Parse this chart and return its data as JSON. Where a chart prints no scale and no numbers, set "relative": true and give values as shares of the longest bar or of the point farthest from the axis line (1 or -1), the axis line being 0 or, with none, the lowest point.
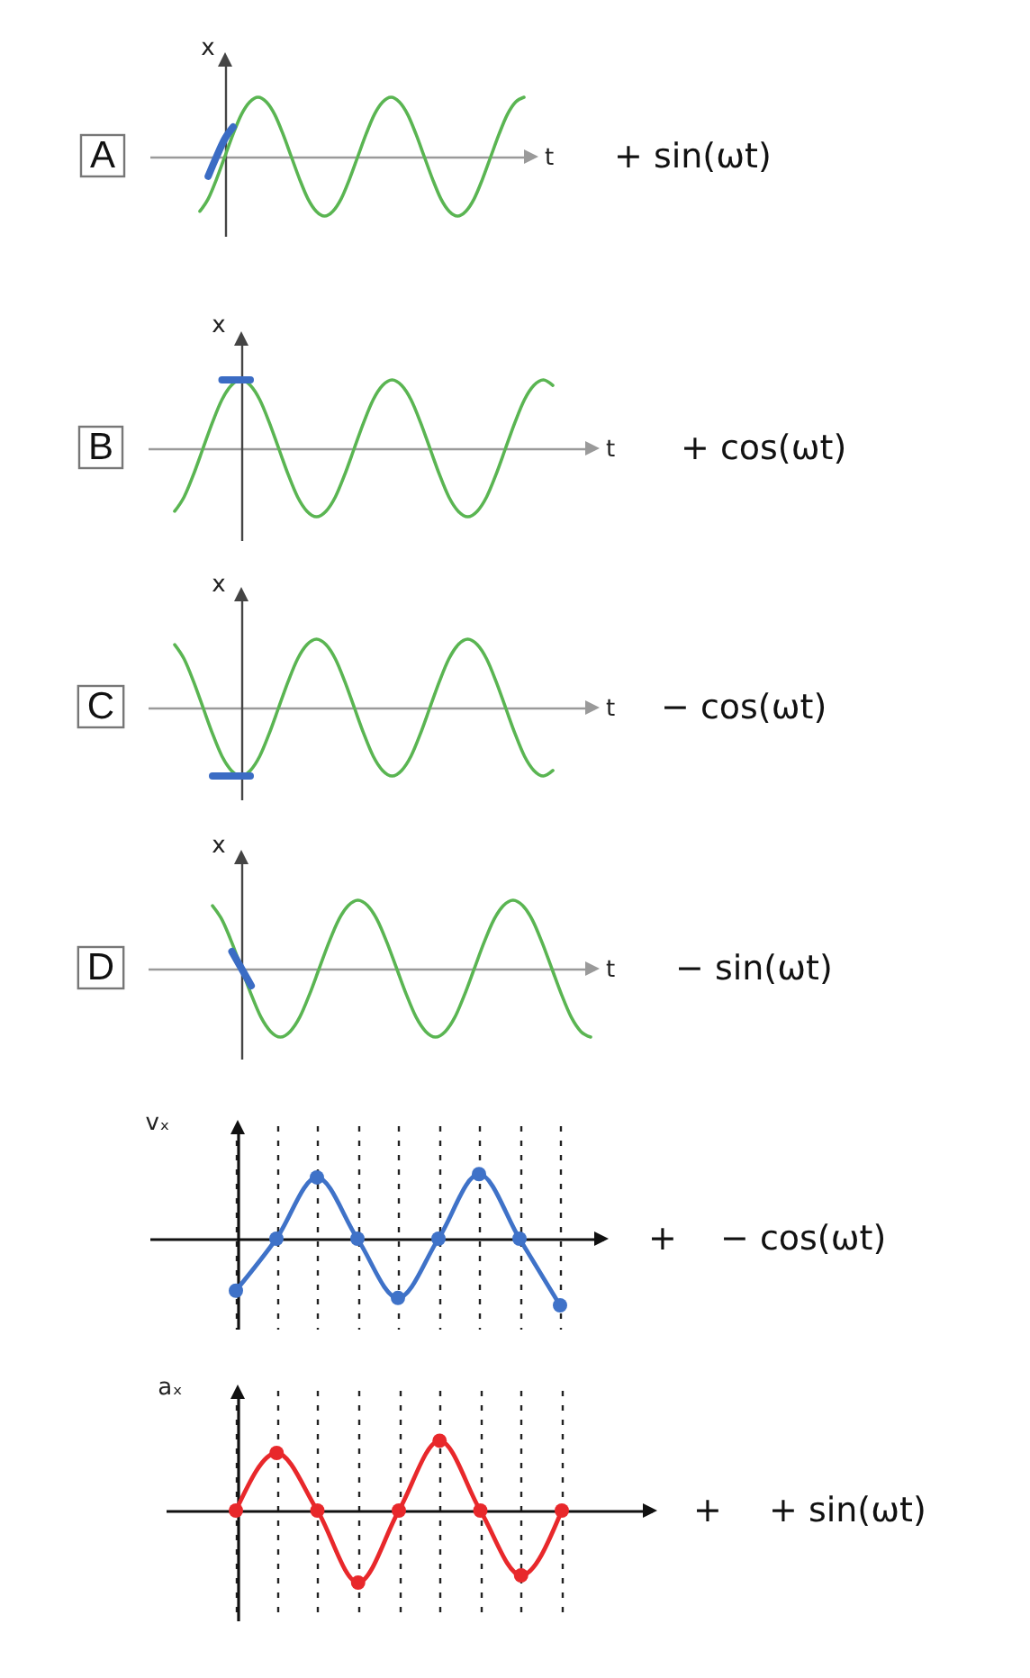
{
  "chart_data": [
    {
      "type": "line",
      "title": "A",
      "xlabel": "t",
      "ylabel": "x",
      "annotations": [
        "+ sin(ωt)"
      ],
      "relative": true,
      "categories": [
        null,
        null,
        null,
        null,
        null,
        null,
        null,
        null,
        null,
        null,
        null,
        null,
        null,
        null,
        null,
        null,
        null,
        null,
        null,
        null,
        null,
        null,
        null,
        null,
        null,
        null,
        null,
        null,
        null,
        null,
        null,
        null,
        null,
        null,
        null,
        null,
        null,
        null,
        null,
        null
      ],
      "series": [
        {
          "color": "#5ab552",
          "values": [
            -0.92,
            -0.71,
            -0.38,
            0,
            0.38,
            0.71,
            0.92,
            1,
            0.92,
            0.71,
            0.38,
            0,
            -0.38,
            -0.71,
            -0.92,
            -1,
            -0.92,
            -0.71,
            -0.38,
            0,
            0.38,
            0.71,
            0.92,
            1,
            0.92,
            0.71,
            0.38,
            0,
            -0.38,
            -0.71,
            -0.92,
            -1,
            -0.92,
            -0.71,
            -0.38,
            0,
            0.38,
            0.71,
            0.92,
            1
          ]
        },
        {
          "color": "#3b6cc4",
          "values": [
            null,
            -0.33,
            0,
            0.3,
            0.5,
            null,
            null,
            null,
            null,
            null,
            null,
            null,
            null,
            null,
            null,
            null,
            null,
            null,
            null,
            null,
            null,
            null,
            null,
            null,
            null,
            null,
            null,
            null,
            null,
            null,
            null,
            null,
            null,
            null,
            null,
            null,
            null,
            null,
            null,
            null
          ]
        }
      ]
    },
    {
      "type": "line",
      "title": "B",
      "xlabel": "t",
      "ylabel": "x",
      "annotations": [
        "+ cos(ωt)"
      ],
      "relative": true,
      "categories": [
        null,
        null,
        null,
        null,
        null,
        null,
        null,
        null,
        null,
        null,
        null,
        null,
        null,
        null,
        null,
        null,
        null,
        null,
        null,
        null,
        null,
        null,
        null,
        null,
        null,
        null,
        null,
        null,
        null,
        null,
        null,
        null,
        null,
        null,
        null,
        null,
        null,
        null,
        null,
        null,
        null
      ],
      "series": [
        {
          "color": "#5ab552",
          "values": [
            -0.92,
            -0.71,
            -0.38,
            0,
            0.38,
            0.71,
            0.92,
            1,
            0.92,
            0.71,
            0.38,
            0,
            -0.38,
            -0.71,
            -0.92,
            -1,
            -0.92,
            -0.71,
            -0.38,
            0,
            0.38,
            0.71,
            0.92,
            1,
            0.92,
            0.71,
            0.38,
            0,
            -0.38,
            -0.71,
            -0.92,
            -1,
            -0.92,
            -0.71,
            -0.38,
            0,
            0.38,
            0.71,
            0.92,
            1,
            0.92
          ]
        },
        {
          "color": "#3b6cc4",
          "values": [
            null,
            null,
            null,
            null,
            null,
            1,
            1,
            1,
            1,
            null,
            null,
            null,
            null,
            null,
            null,
            null,
            null,
            null,
            null,
            null,
            null,
            null,
            null,
            null,
            null,
            null,
            null,
            null,
            null,
            null,
            null,
            null,
            null,
            null,
            null,
            null,
            null,
            null,
            null,
            null,
            null
          ]
        }
      ]
    },
    {
      "type": "line",
      "title": "C",
      "xlabel": "t",
      "ylabel": "x",
      "annotations": [
        "− cos(ωt)"
      ],
      "relative": true,
      "categories": [
        null,
        null,
        null,
        null,
        null,
        null,
        null,
        null,
        null,
        null,
        null,
        null,
        null,
        null,
        null,
        null,
        null,
        null,
        null,
        null,
        null,
        null,
        null,
        null,
        null,
        null,
        null,
        null,
        null,
        null,
        null,
        null,
        null,
        null,
        null,
        null,
        null,
        null,
        null,
        null,
        null
      ],
      "series": [
        {
          "color": "#5ab552",
          "values": [
            0.92,
            0.71,
            0.38,
            0,
            -0.38,
            -0.71,
            -0.92,
            -1,
            -0.92,
            -0.71,
            -0.38,
            0,
            0.38,
            0.71,
            0.92,
            1,
            0.92,
            0.71,
            0.38,
            0,
            -0.38,
            -0.71,
            -0.92,
            -1,
            -0.92,
            -0.71,
            -0.38,
            0,
            0.38,
            0.71,
            0.92,
            1,
            0.92,
            0.71,
            0.38,
            0,
            -0.38,
            -0.71,
            -0.92,
            -1,
            -0.92
          ]
        },
        {
          "color": "#3b6cc4",
          "values": [
            null,
            null,
            null,
            null,
            -1,
            -1,
            -1,
            -1,
            -1,
            null,
            null,
            null,
            null,
            null,
            null,
            null,
            null,
            null,
            null,
            null,
            null,
            null,
            null,
            null,
            null,
            null,
            null,
            null,
            null,
            null,
            null,
            null,
            null,
            null,
            null,
            null,
            null,
            null,
            null,
            null,
            null
          ]
        }
      ]
    },
    {
      "type": "line",
      "title": "D",
      "xlabel": "t",
      "ylabel": "x",
      "annotations": [
        "− sin(ωt)"
      ],
      "relative": true,
      "categories": [
        null,
        null,
        null,
        null,
        null,
        null,
        null,
        null,
        null,
        null,
        null,
        null,
        null,
        null,
        null,
        null,
        null,
        null,
        null,
        null,
        null,
        null,
        null,
        null,
        null,
        null,
        null,
        null,
        null,
        null,
        null,
        null,
        null,
        null,
        null,
        null,
        null,
        null,
        null,
        null
      ],
      "series": [
        {
          "color": "#5ab552",
          "values": [
            0.92,
            0.71,
            0.38,
            0,
            -0.38,
            -0.71,
            -0.92,
            -1,
            -0.92,
            -0.71,
            -0.38,
            0,
            0.38,
            0.71,
            0.92,
            1,
            0.92,
            0.71,
            0.38,
            0,
            -0.38,
            -0.71,
            -0.92,
            -1,
            -0.92,
            -0.71,
            -0.38,
            0,
            0.38,
            0.71,
            0.92,
            1,
            0.92,
            0.71,
            0.38,
            0,
            -0.38,
            -0.71,
            -0.92,
            -1
          ]
        },
        {
          "color": "#3b6cc4",
          "values": [
            null,
            null,
            0.25,
            0,
            -0.25,
            null,
            null,
            null,
            null,
            null,
            null,
            null,
            null,
            null,
            null,
            null,
            null,
            null,
            null,
            null,
            null,
            null,
            null,
            null,
            null,
            null,
            null,
            null,
            null,
            null,
            null,
            null,
            null,
            null,
            null,
            null,
            null,
            null,
            null,
            null
          ]
        }
      ]
    },
    {
      "type": "line",
      "ylabel": "vₓ",
      "annotations": [
        "+",
        "− cos(ωt)"
      ],
      "relative": true,
      "marker": "circle",
      "grid": "x",
      "categories": [
        null,
        null,
        null,
        null,
        null,
        null,
        null,
        null,
        null
      ],
      "series": [
        {
          "color": "#3f72c8",
          "values": [
            -0.78,
            0,
            0.92,
            0,
            -0.89,
            0,
            0.97,
            0,
            -1
          ]
        }
      ]
    },
    {
      "type": "line",
      "ylabel": "aₓ",
      "annotations": [
        "+",
        "+ sin(ωt)"
      ],
      "relative": true,
      "marker": "circle",
      "grid": "x",
      "categories": [
        null,
        null,
        null,
        null,
        null,
        null,
        null,
        null,
        null
      ],
      "series": [
        {
          "color": "#e8282b",
          "values": [
            0,
            0.8,
            0,
            -1,
            0,
            0.97,
            0,
            -0.9,
            0
          ]
        }
      ]
    }
  ]
}
